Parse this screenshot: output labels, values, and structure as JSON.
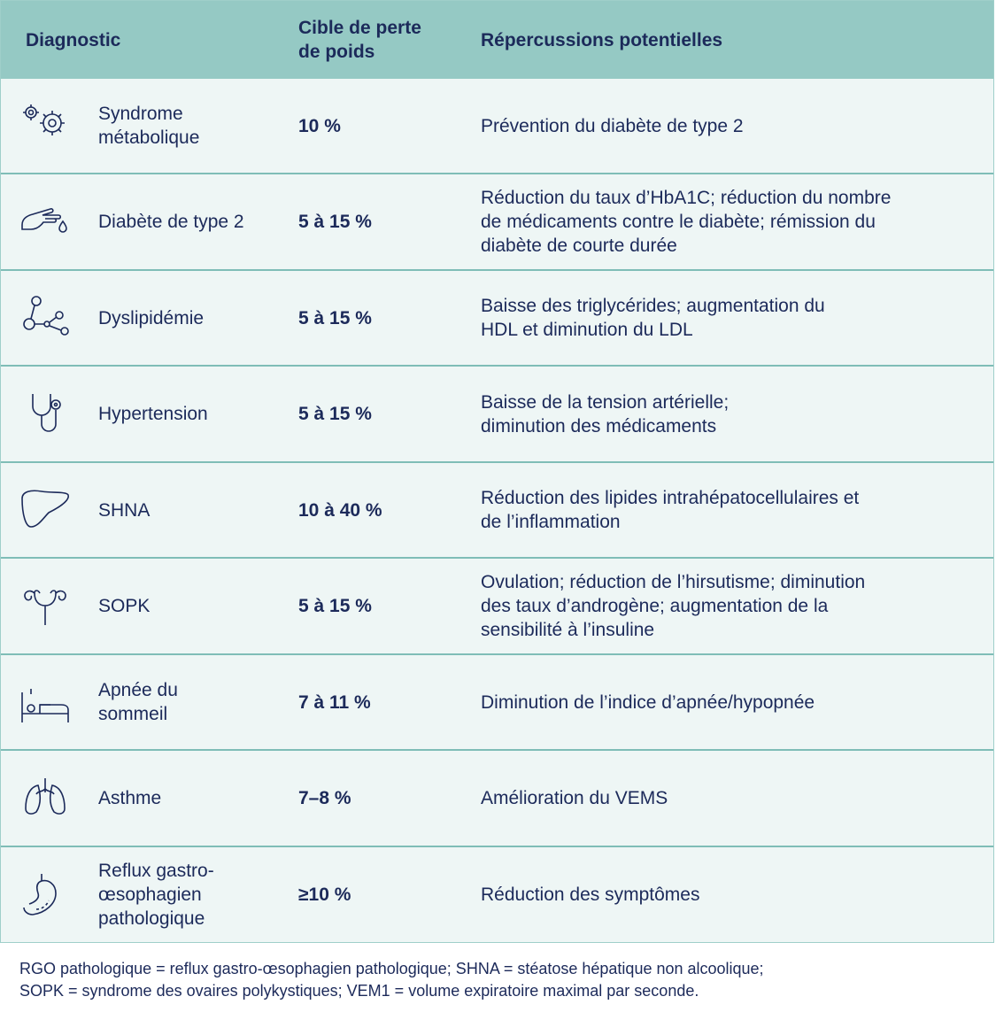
{
  "table": {
    "header": [
      "Diagnostic",
      [
        "Cible de perte",
        "de poids"
      ],
      "Répercussions potentielles"
    ],
    "rows": [
      {
        "diagnostic": [
          "Syndrome",
          "métabolique"
        ],
        "target": "10 %",
        "effects": [
          "Prévention du diabète de type 2"
        ]
      },
      {
        "diagnostic": [
          "Diabète de type 2"
        ],
        "target": "5 à 15 %",
        "effects": [
          "Réduction du taux d’HbA1C; réduction du nombre",
          "de médicaments contre le diabète; rémission du",
          "diabète de courte durée"
        ]
      },
      {
        "diagnostic": [
          "Dyslipidémie"
        ],
        "target": "5 à 15 %",
        "effects": [
          "Baisse des triglycérides; augmentation du",
          "HDL et diminution du LDL"
        ]
      },
      {
        "diagnostic": [
          "Hypertension"
        ],
        "target": "5 à 15 %",
        "effects": [
          "Baisse de la tension artérielle;",
          "diminution des médicaments"
        ]
      },
      {
        "diagnostic": [
          "SHNA"
        ],
        "target": "10 à 40 %",
        "effects": [
          "Réduction des lipides intrahépatocellulaires et",
          "de l’inflammation"
        ]
      },
      {
        "diagnostic": [
          "SOPK"
        ],
        "target": "5 à 15 %",
        "effects": [
          "Ovulation; réduction de l’hirsutisme; diminution",
          "des taux d’androgène; augmentation de la",
          "sensibilité à l’insuline"
        ]
      },
      {
        "diagnostic": [
          "Apnée du",
          "sommeil"
        ],
        "target": "7 à 11 %",
        "effects": [
          "Diminution de l’indice d’apnée/hypopnée"
        ]
      },
      {
        "diagnostic": [
          "Asthme"
        ],
        "target": "7–8 %",
        "effects": [
          "Amélioration du VEMS"
        ]
      },
      {
        "diagnostic": [
          "Reflux gastro-",
          "œsophagien",
          "pathologique"
        ],
        "target": "≥10 %",
        "effects": [
          "Réduction des symptômes"
        ]
      }
    ]
  },
  "footnote": [
    "RGO pathologique = reflux gastro-œsophagien pathologique; SHNA = stéatose hépatique non alcoolique;",
    "SOPK = syndrome des ovaires polykystiques; VEM1 = volume expiratoire maximal par seconde."
  ]
}
